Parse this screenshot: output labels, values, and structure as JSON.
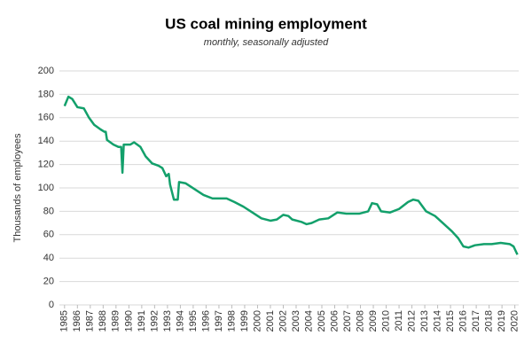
{
  "chart_data": {
    "type": "line",
    "title": "US coal mining employment",
    "subtitle": "monthly, seasonally adjusted",
    "y_label": "Thousands of employees",
    "x": [
      1985.0,
      1985.3,
      1985.6,
      1986.0,
      1986.5,
      1986.9,
      1987.3,
      1987.8,
      1988.1,
      1988.2,
      1988.3,
      1988.8,
      1989.2,
      1989.4,
      1989.5,
      1989.6,
      1990.1,
      1990.4,
      1990.9,
      1991.3,
      1991.8,
      1992.3,
      1992.6,
      1992.9,
      1993.1,
      1993.2,
      1993.5,
      1993.8,
      1993.9,
      1994.4,
      1995.1,
      1995.8,
      1996.5,
      1997.6,
      1998.2,
      1998.9,
      1999.6,
      2000.3,
      2001.0,
      2001.5,
      2002.0,
      2002.4,
      2002.7,
      2003.4,
      2003.8,
      2004.2,
      2004.8,
      2005.5,
      2006.2,
      2006.9,
      2007.9,
      2008.6,
      2008.9,
      2009.3,
      2009.6,
      2010.3,
      2011.0,
      2011.7,
      2012.1,
      2012.5,
      2013.1,
      2013.8,
      2014.4,
      2015.1,
      2015.6,
      2016.0,
      2016.4,
      2016.9,
      2017.6,
      2018.2,
      2018.9,
      2019.6,
      2019.9,
      2020.2
    ],
    "series": [
      {
        "name": "Coal mining employment",
        "color": "#13a06b",
        "values": [
          170,
          178,
          176,
          169,
          168,
          160,
          154,
          150,
          148,
          148,
          141,
          137,
          135,
          135,
          113,
          137,
          137,
          139,
          135,
          127,
          121,
          119,
          117,
          110,
          112,
          103,
          90,
          90,
          105,
          104,
          99,
          94,
          91,
          91,
          88,
          84,
          79,
          74,
          72,
          73,
          77,
          76,
          73,
          71,
          69,
          70,
          73,
          74,
          79,
          78,
          78,
          80,
          87,
          86,
          80,
          79,
          82,
          88,
          90,
          89,
          80,
          76,
          70,
          63,
          57,
          50,
          49,
          51,
          52,
          52,
          53,
          52,
          50,
          43
        ]
      }
    ],
    "xlim": [
      1984.6,
      2020.3
    ],
    "xticks": [
      1985,
      1986,
      1987,
      1988,
      1989,
      1990,
      1991,
      1992,
      1993,
      1994,
      1995,
      1996,
      1997,
      1998,
      1999,
      2000,
      2001,
      2002,
      2003,
      2004,
      2005,
      2006,
      2007,
      2008,
      2009,
      2010,
      2011,
      2012,
      2013,
      2014,
      2015,
      2016,
      2017,
      2018,
      2019,
      2020
    ],
    "ylim": [
      0,
      200
    ],
    "yticks": [
      0,
      20,
      40,
      60,
      80,
      100,
      120,
      140,
      160,
      180,
      200
    ],
    "grid": true
  }
}
